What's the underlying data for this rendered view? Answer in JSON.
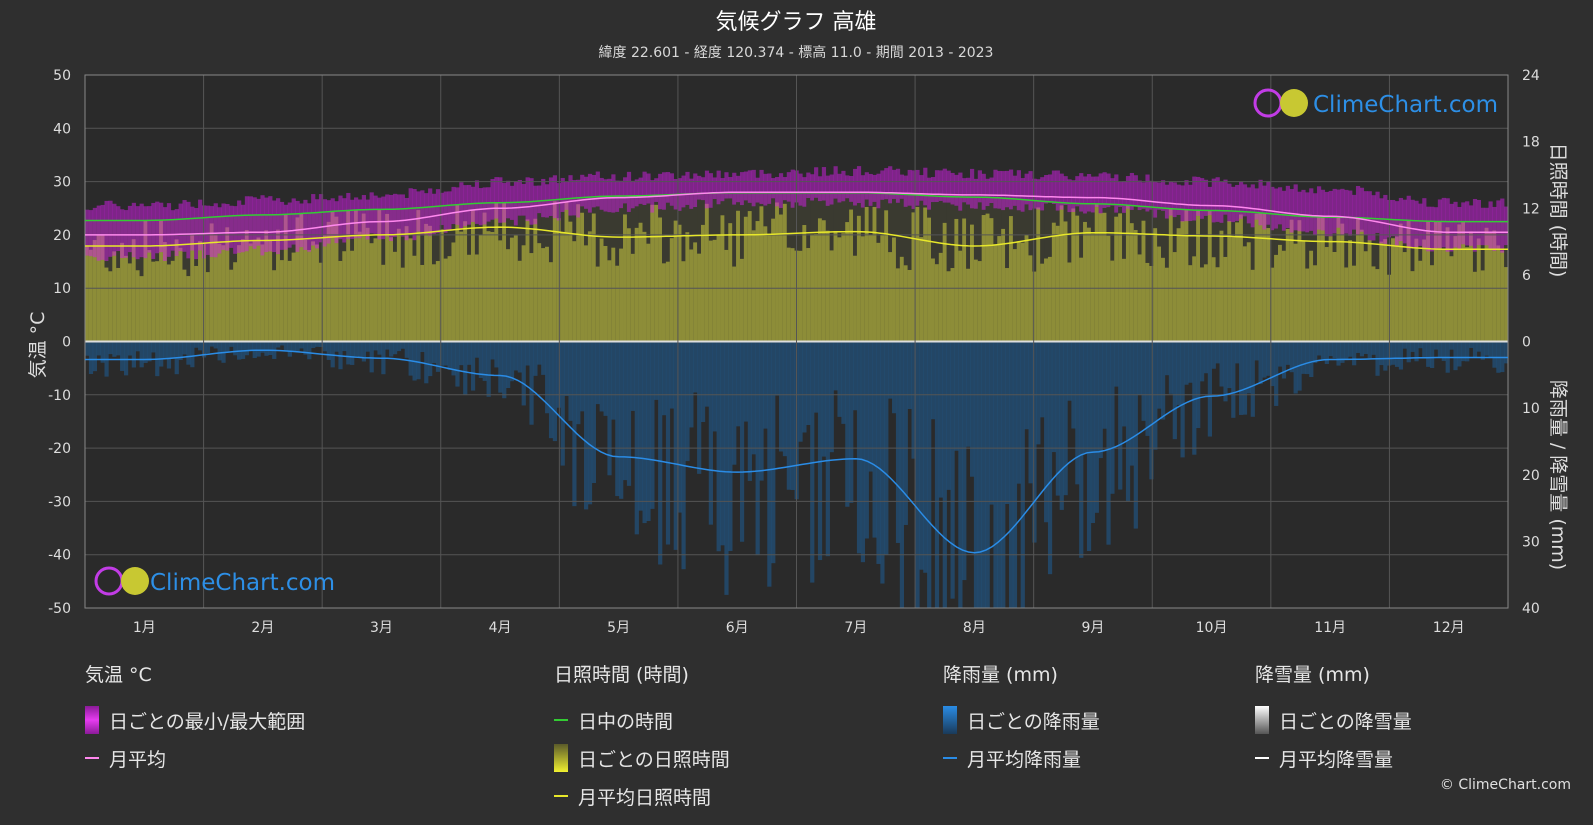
{
  "header": {
    "title": "気候グラフ 高雄",
    "subtitle": "緯度 22.601 - 経度 120.374 - 標高 11.0 - 期間 2013 - 2023"
  },
  "watermark": "ClimeChart.com",
  "copyright": "© ClimeChart.com",
  "colors": {
    "background": "#2f2f2f",
    "grid": "#555555",
    "temp_range": "#d21ee6",
    "temp_avg": "#ff88ee",
    "daylight": "#33cc33",
    "sunshine_bar": "#9c9c3a",
    "sunshine_avg": "#e8e82a",
    "rain_bar": "#1f5a8e",
    "rain_avg": "#2a8ce6",
    "snow": "#ffffff"
  },
  "chart_data": {
    "type": "line",
    "categories": [
      "1月",
      "2月",
      "3月",
      "4月",
      "5月",
      "6月",
      "7月",
      "8月",
      "9月",
      "10月",
      "11月",
      "12月"
    ],
    "axes": {
      "left": {
        "label": "気温 °C",
        "range": [
          -50,
          50
        ],
        "ticks": [
          50,
          40,
          30,
          20,
          10,
          0,
          -10,
          -20,
          -30,
          -40,
          -50
        ]
      },
      "right_top": {
        "label": "日照時間 (時間)",
        "range": [
          0,
          24
        ],
        "ticks": [
          24,
          18,
          12,
          6,
          0
        ]
      },
      "right_bottom": {
        "label": "降雨量 / 降雪量 (mm)",
        "range": [
          0,
          40
        ],
        "ticks": [
          0,
          10,
          20,
          30,
          40
        ]
      }
    },
    "grid": true,
    "series": [
      {
        "name": "月平均",
        "unit": "°C",
        "values": [
          20.0,
          20.5,
          22.5,
          25.0,
          27.0,
          28.0,
          28.0,
          27.5,
          27.0,
          25.5,
          23.5,
          20.5
        ]
      },
      {
        "name": "日中の時間",
        "unit": "時間",
        "values": [
          10.9,
          11.4,
          11.9,
          12.5,
          13.1,
          13.4,
          13.4,
          13.0,
          12.4,
          11.8,
          11.2,
          10.8
        ]
      },
      {
        "name": "月平均日照時間",
        "unit": "時間",
        "values": [
          8.6,
          9.1,
          9.6,
          10.3,
          9.4,
          9.6,
          9.9,
          8.6,
          9.8,
          9.5,
          9.0,
          8.3
        ]
      },
      {
        "name": "月平均降雨量",
        "unit": "mm",
        "values": [
          2.7,
          1.3,
          2.5,
          5.1,
          17.3,
          19.6,
          17.6,
          31.7,
          16.6,
          8.2,
          2.7,
          2.4
        ]
      },
      {
        "name": "日ごとの最小/最大範囲",
        "unit": "°C",
        "min": [
          16.0,
          17.0,
          19.5,
          22.5,
          25.0,
          26.0,
          26.0,
          25.5,
          25.0,
          23.0,
          20.5,
          17.5
        ],
        "max": [
          25.5,
          26.5,
          27.5,
          30.0,
          31.0,
          31.5,
          32.0,
          31.5,
          31.0,
          30.0,
          28.5,
          26.0
        ]
      }
    ]
  },
  "legend": {
    "temperature": {
      "title": "気温 °C",
      "items": [
        "日ごとの最小/最大範囲",
        "月平均"
      ]
    },
    "sunshine": {
      "title": "日照時間 (時間)",
      "items": [
        "日中の時間",
        "日ごとの日照時間",
        "月平均日照時間"
      ]
    },
    "rain": {
      "title": "降雨量 (mm)",
      "items": [
        "日ごとの降雨量",
        "月平均降雨量"
      ]
    },
    "snow": {
      "title": "降雪量 (mm)",
      "items": [
        "日ごとの降雪量",
        "月平均降雪量"
      ]
    }
  }
}
